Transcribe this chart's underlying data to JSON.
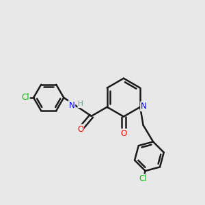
{
  "bg_color": "#e8e8e8",
  "bond_color": "#1a1a1a",
  "bond_width": 1.8,
  "atom_colors": {
    "N": "#0000ff",
    "O": "#ff0000",
    "Cl": "#00bb00",
    "H": "#5a9090",
    "C": "#1a1a1a"
  },
  "font_size": 8.5,
  "font_size_small": 7.5
}
